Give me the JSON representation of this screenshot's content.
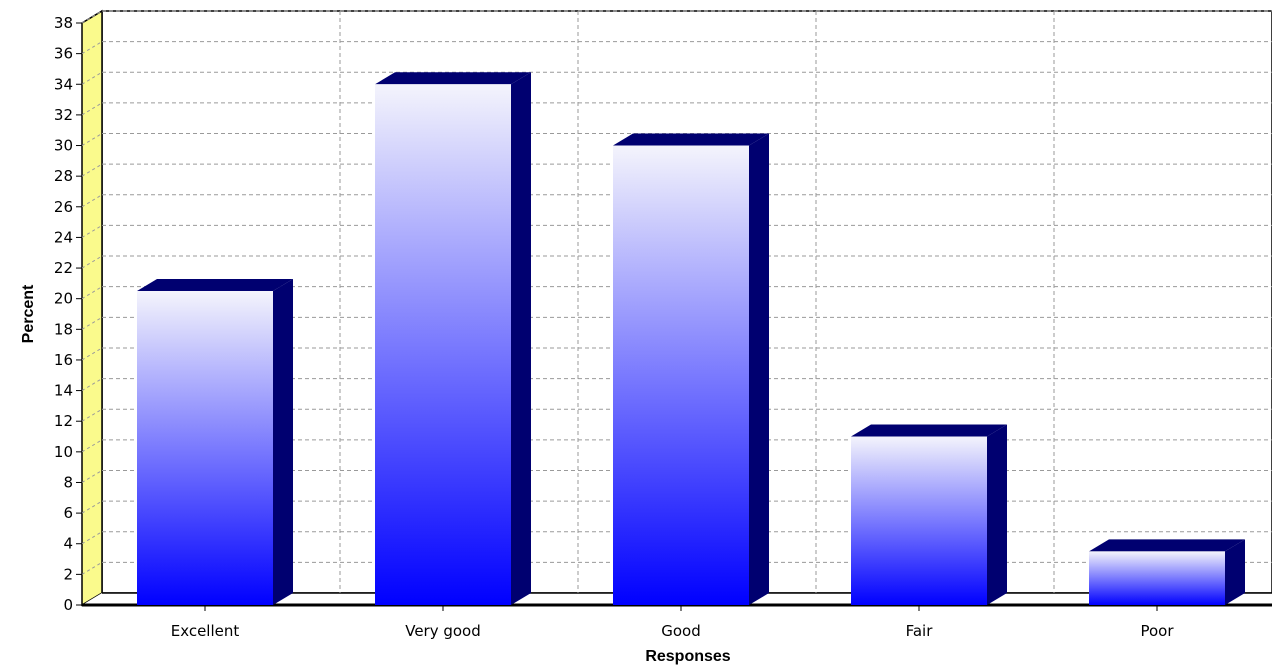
{
  "chart_data": {
    "type": "bar",
    "title": "",
    "xlabel": "Responses",
    "ylabel": "Percent",
    "categories": [
      "Excellent",
      "Very good",
      "Good",
      "Fair",
      "Poor"
    ],
    "values": [
      20.5,
      34,
      30,
      11,
      3.5
    ],
    "ylim": [
      0,
      38
    ],
    "yticks": [
      0,
      2,
      4,
      6,
      8,
      10,
      12,
      14,
      16,
      18,
      20,
      22,
      24,
      26,
      28,
      30,
      32,
      34,
      36,
      38
    ],
    "grid": true,
    "legend": "none",
    "three_d": true
  },
  "colors": {
    "bar_top_gradient": "#f4f4fc",
    "bar_bottom_gradient": "#0000ff",
    "bar_side": "#000070",
    "back_wall": "#ffffff",
    "side_wall": "#fafa8c",
    "grid_line": "#9a9a9a"
  }
}
